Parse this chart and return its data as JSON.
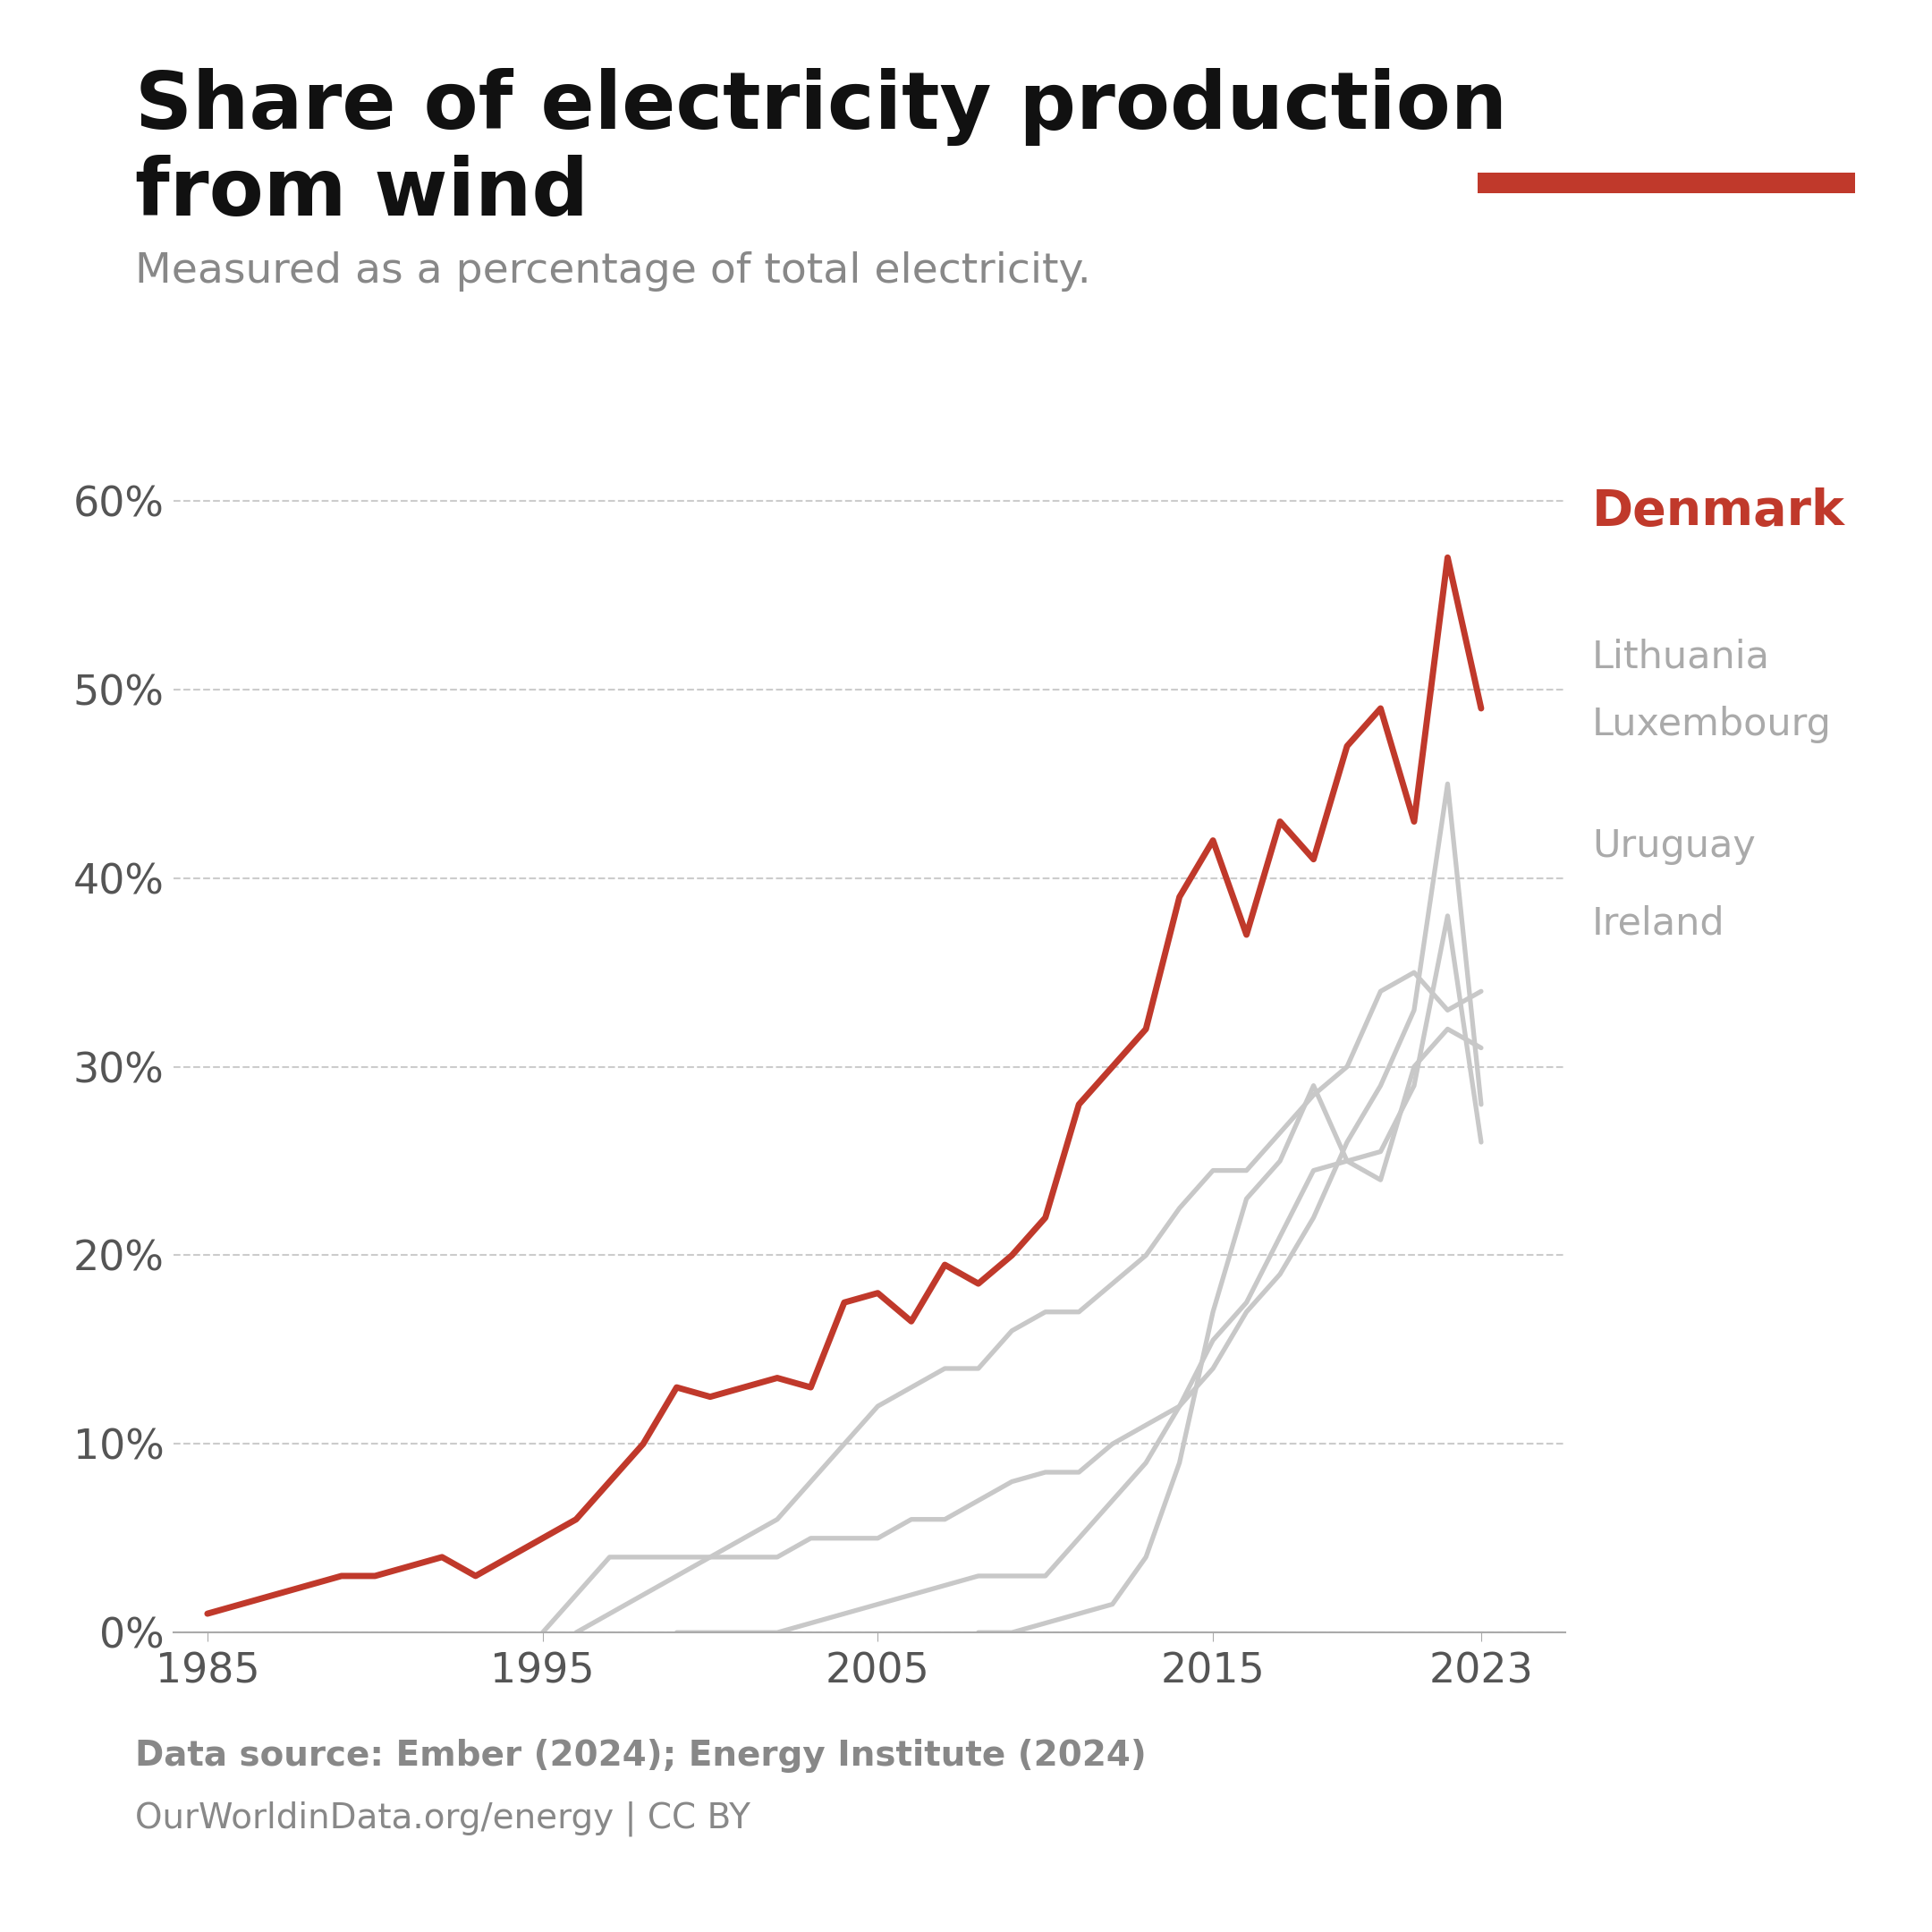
{
  "title": "Share of electricity production\nfrom wind",
  "subtitle": "Measured as a percentage of total electricity.",
  "source_line1": "Data source: Ember (2024); Energy Institute (2024)",
  "source_line2": "OurWorldinData.org/energy | CC BY",
  "background_color": "#ffffff",
  "denmark_color": "#c0392b",
  "other_color": "#c8c8c8",
  "denmark_label": "Denmark",
  "ylim": [
    0,
    0.63
  ],
  "xlim": [
    1984,
    2025.5
  ],
  "yticks": [
    0.0,
    0.1,
    0.2,
    0.3,
    0.4,
    0.5,
    0.6
  ],
  "ytick_labels": [
    "0%",
    "10%",
    "20%",
    "30%",
    "40%",
    "50%",
    "60%"
  ],
  "xticks": [
    1985,
    1995,
    2005,
    2015,
    2023
  ],
  "denmark": {
    "years": [
      1985,
      1986,
      1987,
      1988,
      1989,
      1990,
      1991,
      1992,
      1993,
      1994,
      1995,
      1996,
      1997,
      1998,
      1999,
      2000,
      2001,
      2002,
      2003,
      2004,
      2005,
      2006,
      2007,
      2008,
      2009,
      2010,
      2011,
      2012,
      2013,
      2014,
      2015,
      2016,
      2017,
      2018,
      2019,
      2020,
      2021,
      2022,
      2023
    ],
    "values": [
      0.01,
      0.015,
      0.02,
      0.025,
      0.03,
      0.03,
      0.035,
      0.04,
      0.03,
      0.04,
      0.05,
      0.06,
      0.08,
      0.1,
      0.13,
      0.125,
      0.13,
      0.135,
      0.13,
      0.175,
      0.18,
      0.165,
      0.195,
      0.185,
      0.2,
      0.22,
      0.28,
      0.3,
      0.32,
      0.39,
      0.42,
      0.37,
      0.43,
      0.41,
      0.47,
      0.49,
      0.43,
      0.57,
      0.49
    ]
  },
  "lithuania": {
    "years": [
      1999,
      2000,
      2001,
      2002,
      2003,
      2004,
      2005,
      2006,
      2007,
      2008,
      2009,
      2010,
      2011,
      2012,
      2013,
      2014,
      2015,
      2016,
      2017,
      2018,
      2019,
      2020,
      2021,
      2022,
      2023
    ],
    "values": [
      0.0,
      0.0,
      0.0,
      0.0,
      0.005,
      0.01,
      0.015,
      0.02,
      0.025,
      0.03,
      0.03,
      0.03,
      0.05,
      0.07,
      0.09,
      0.12,
      0.155,
      0.175,
      0.21,
      0.245,
      0.25,
      0.255,
      0.29,
      0.38,
      0.26
    ]
  },
  "luxembourg": {
    "years": [
      1995,
      1996,
      1997,
      1998,
      1999,
      2000,
      2001,
      2002,
      2003,
      2004,
      2005,
      2006,
      2007,
      2008,
      2009,
      2010,
      2011,
      2012,
      2013,
      2014,
      2015,
      2016,
      2017,
      2018,
      2019,
      2020,
      2021,
      2022,
      2023
    ],
    "values": [
      0.0,
      0.02,
      0.04,
      0.04,
      0.04,
      0.04,
      0.04,
      0.04,
      0.05,
      0.05,
      0.05,
      0.06,
      0.06,
      0.07,
      0.08,
      0.085,
      0.085,
      0.1,
      0.11,
      0.12,
      0.14,
      0.17,
      0.19,
      0.22,
      0.26,
      0.29,
      0.33,
      0.45,
      0.28
    ]
  },
  "uruguay": {
    "years": [
      2008,
      2009,
      2010,
      2011,
      2012,
      2013,
      2014,
      2015,
      2016,
      2017,
      2018,
      2019,
      2020,
      2021,
      2022,
      2023
    ],
    "values": [
      0.0,
      0.0,
      0.005,
      0.01,
      0.015,
      0.04,
      0.09,
      0.17,
      0.23,
      0.25,
      0.29,
      0.25,
      0.24,
      0.3,
      0.32,
      0.31
    ]
  },
  "ireland": {
    "years": [
      1996,
      1997,
      1998,
      1999,
      2000,
      2001,
      2002,
      2003,
      2004,
      2005,
      2006,
      2007,
      2008,
      2009,
      2010,
      2011,
      2012,
      2013,
      2014,
      2015,
      2016,
      2017,
      2018,
      2019,
      2020,
      2021,
      2022,
      2023
    ],
    "values": [
      0.0,
      0.01,
      0.02,
      0.03,
      0.04,
      0.05,
      0.06,
      0.08,
      0.1,
      0.12,
      0.13,
      0.14,
      0.14,
      0.16,
      0.17,
      0.17,
      0.185,
      0.2,
      0.225,
      0.245,
      0.245,
      0.265,
      0.285,
      0.3,
      0.34,
      0.35,
      0.33,
      0.34
    ]
  }
}
